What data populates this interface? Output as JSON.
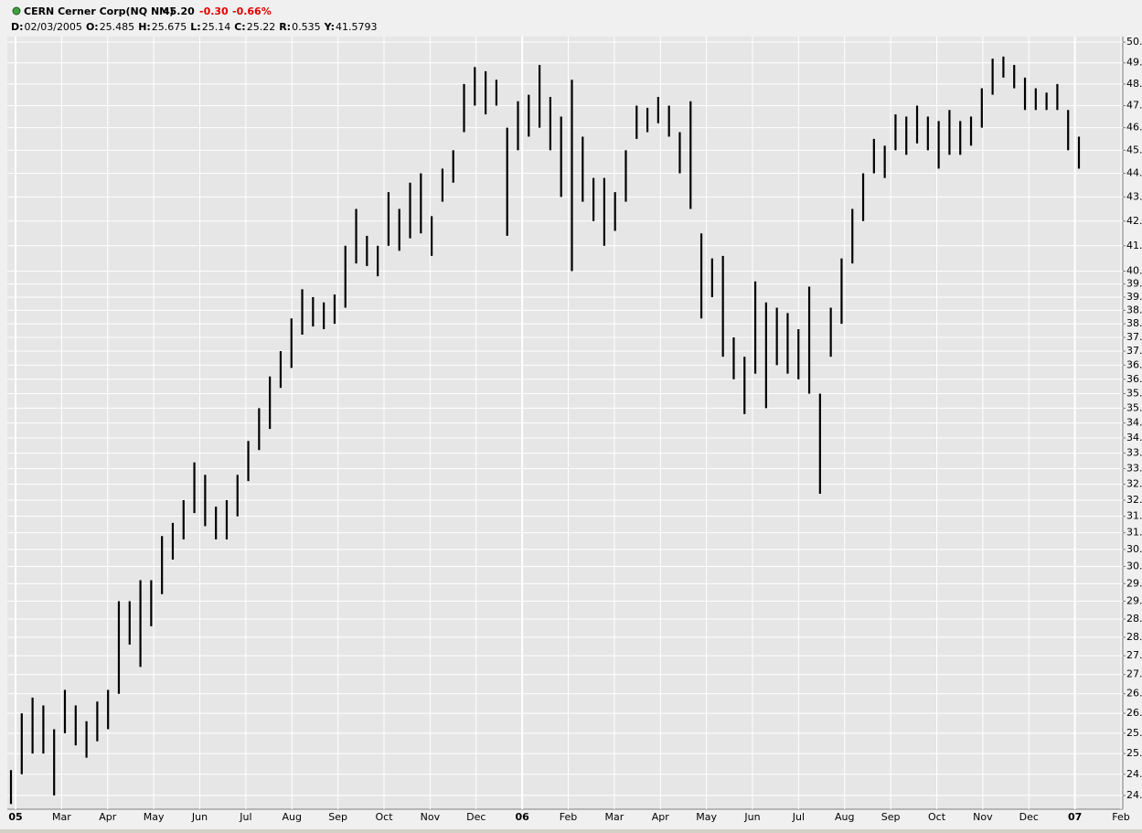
{
  "header": {
    "symbol": "CERN Cerner Corp(NQ NM)",
    "last": "45.20",
    "change": "-0.30",
    "change_pct": "-0.66%",
    "fields": [
      [
        "D:",
        "02/03/2005"
      ],
      [
        "O:",
        "25.485"
      ],
      [
        "H:",
        "25.675"
      ],
      [
        "L:",
        "25.14"
      ],
      [
        "C:",
        "25.22"
      ],
      [
        "R:",
        "0.535"
      ],
      [
        "Y:",
        "41.5793"
      ]
    ]
  },
  "chart_data": {
    "type": "range",
    "color": "#000000",
    "grid": true,
    "log_scale": true,
    "xlim": [
      "2005-02",
      "2007-02"
    ],
    "xticks": [
      {
        "value": "2005-02",
        "label": "05"
      },
      {
        "value": "2005-03",
        "label": "Mar"
      },
      {
        "value": "2005-04",
        "label": "Apr"
      },
      {
        "value": "2005-05",
        "label": "May"
      },
      {
        "value": "2005-06",
        "label": "Jun"
      },
      {
        "value": "2005-07",
        "label": "Jul"
      },
      {
        "value": "2005-08",
        "label": "Aug"
      },
      {
        "value": "2005-09",
        "label": "Sep"
      },
      {
        "value": "2005-10",
        "label": "Oct"
      },
      {
        "value": "2005-11",
        "label": "Nov"
      },
      {
        "value": "2005-12",
        "label": "Dec"
      },
      {
        "value": "2006-01",
        "label": "06"
      },
      {
        "value": "2006-02",
        "label": "Feb"
      },
      {
        "value": "2006-03",
        "label": "Mar"
      },
      {
        "value": "2006-04",
        "label": "Apr"
      },
      {
        "value": "2006-05",
        "label": "May"
      },
      {
        "value": "2006-06",
        "label": "Jun"
      },
      {
        "value": "2006-07",
        "label": "Jul"
      },
      {
        "value": "2006-08",
        "label": "Aug"
      },
      {
        "value": "2006-09",
        "label": "Sep"
      },
      {
        "value": "2006-10",
        "label": "Oct"
      },
      {
        "value": "2006-11",
        "label": "Nov"
      },
      {
        "value": "2006-12",
        "label": "Dec"
      },
      {
        "value": "2007-01",
        "label": "07"
      },
      {
        "value": "2007-02",
        "label": "Feb"
      }
    ],
    "ylim": [
      23.68,
      50.27
    ],
    "yticks": [
      {
        "value": 24,
        "label": "24."
      },
      {
        "value": 24.5,
        "label": "24."
      },
      {
        "value": 25,
        "label": "25."
      },
      {
        "value": 25.5,
        "label": "25."
      },
      {
        "value": 26,
        "label": "26."
      },
      {
        "value": 26.5,
        "label": "26."
      },
      {
        "value": 27,
        "label": "27."
      },
      {
        "value": 27.5,
        "label": "27."
      },
      {
        "value": 28,
        "label": "28."
      },
      {
        "value": 28.5,
        "label": "28."
      },
      {
        "value": 29,
        "label": "29."
      },
      {
        "value": 29.5,
        "label": "29."
      },
      {
        "value": 30,
        "label": "30."
      },
      {
        "value": 30.5,
        "label": "30."
      },
      {
        "value": 31,
        "label": "31."
      },
      {
        "value": 31.5,
        "label": "31."
      },
      {
        "value": 32,
        "label": "32."
      },
      {
        "value": 32.5,
        "label": "32."
      },
      {
        "value": 33,
        "label": "33."
      },
      {
        "value": 33.5,
        "label": "33."
      },
      {
        "value": 34,
        "label": "34."
      },
      {
        "value": 34.5,
        "label": "34."
      },
      {
        "value": 35,
        "label": "35."
      },
      {
        "value": 35.5,
        "label": "35."
      },
      {
        "value": 36,
        "label": "36."
      },
      {
        "value": 36.5,
        "label": "36."
      },
      {
        "value": 37,
        "label": "37."
      },
      {
        "value": 37.5,
        "label": "37."
      },
      {
        "value": 38,
        "label": "38."
      },
      {
        "value": 38.5,
        "label": "38."
      },
      {
        "value": 39,
        "label": "39."
      },
      {
        "value": 39.5,
        "label": "39."
      },
      {
        "value": 40,
        "label": "40."
      },
      {
        "value": 41,
        "label": "41."
      },
      {
        "value": 42,
        "label": "42."
      },
      {
        "value": 43,
        "label": "43."
      },
      {
        "value": 44,
        "label": "44."
      },
      {
        "value": 45,
        "label": "45."
      },
      {
        "value": 46,
        "label": "46."
      },
      {
        "value": 47,
        "label": "47."
      },
      {
        "value": 48,
        "label": "48."
      },
      {
        "value": 49,
        "label": "49."
      },
      {
        "value": 50,
        "label": "50."
      }
    ],
    "low": [
      23.8,
      24.5,
      25.0,
      25.0,
      24.0,
      25.5,
      25.2,
      24.9,
      25.3,
      25.6,
      26.5,
      27.8,
      27.2,
      28.3,
      29.2,
      30.2,
      30.8,
      31.6,
      31.2,
      30.8,
      30.8,
      31.5,
      32.6,
      33.6,
      34.3,
      35.7,
      36.4,
      37.6,
      37.9,
      37.8,
      38.0,
      38.6,
      40.3,
      40.2,
      39.8,
      41.0,
      40.8,
      41.3,
      41.5,
      40.6,
      42.8,
      43.6,
      45.8,
      47.0,
      46.6,
      47.0,
      41.4,
      45.0,
      45.6,
      46.0,
      45.0,
      43.0,
      40.0,
      42.8,
      42.0,
      41.0,
      41.6,
      42.8,
      45.5,
      45.8,
      46.2,
      45.6,
      44.0,
      42.5,
      38.2,
      39.0,
      36.8,
      36.0,
      34.8,
      36.2,
      35.0,
      36.5,
      36.2,
      36.0,
      35.5,
      32.2,
      36.8,
      38.0,
      40.3,
      42.0,
      44.0,
      43.8,
      45.0,
      44.8,
      45.3,
      45.0,
      44.2,
      44.8,
      44.8,
      45.2,
      46.0,
      47.5,
      48.3,
      47.8,
      46.8,
      46.8,
      46.8,
      46.8,
      45.0,
      44.2
    ],
    "high": [
      24.6,
      26.0,
      26.4,
      26.2,
      25.6,
      26.6,
      26.2,
      25.8,
      26.3,
      26.6,
      29.0,
      29.0,
      29.6,
      29.6,
      30.9,
      31.3,
      32.0,
      33.2,
      32.8,
      31.8,
      32.0,
      32.8,
      33.9,
      35.0,
      36.1,
      37.0,
      38.2,
      39.3,
      39.0,
      38.8,
      39.1,
      41.0,
      42.5,
      41.4,
      41.0,
      43.2,
      42.5,
      43.6,
      44.0,
      42.2,
      44.2,
      45.0,
      48.0,
      48.8,
      48.6,
      48.2,
      46.0,
      47.2,
      47.5,
      48.9,
      47.4,
      46.5,
      48.2,
      45.6,
      43.8,
      43.8,
      43.2,
      45.0,
      47.0,
      46.9,
      47.4,
      47.0,
      45.8,
      47.2,
      41.5,
      40.5,
      40.6,
      37.5,
      36.8,
      39.6,
      38.8,
      38.6,
      38.4,
      37.8,
      39.4,
      35.5,
      38.6,
      40.5,
      42.5,
      44.0,
      45.5,
      45.2,
      46.6,
      46.5,
      47.0,
      46.5,
      46.3,
      46.8,
      46.3,
      46.5,
      47.8,
      49.2,
      49.3,
      48.9,
      48.3,
      47.8,
      47.6,
      48.0,
      46.8,
      45.6
    ]
  }
}
